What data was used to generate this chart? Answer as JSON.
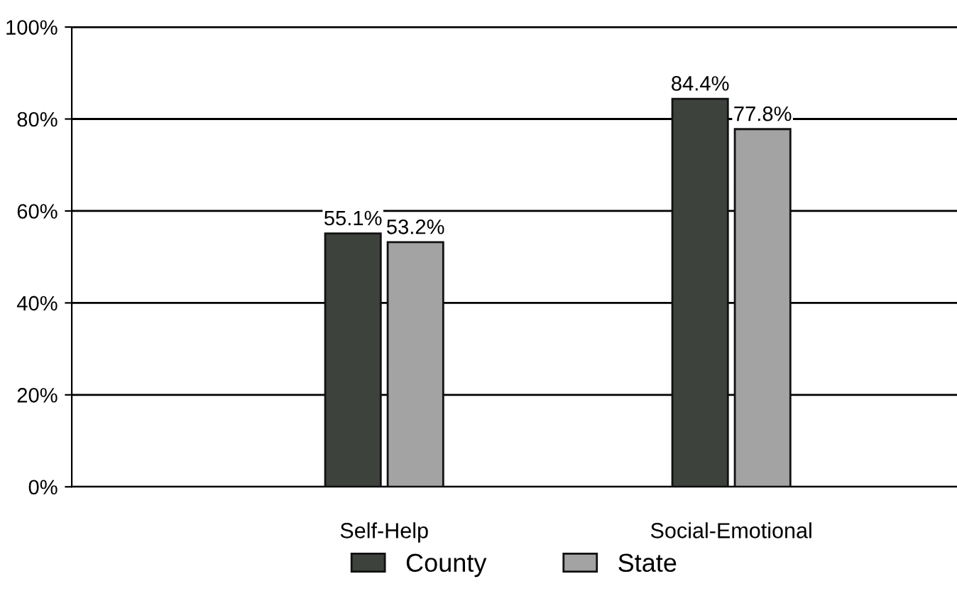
{
  "chart_data": {
    "type": "bar",
    "categories": [
      "Self-Help",
      "Social-Emotional"
    ],
    "series": [
      {
        "name": "County",
        "color": "#3d423d",
        "values": [
          55.1,
          84.4
        ],
        "value_labels": [
          "55.1%",
          "84.4%"
        ]
      },
      {
        "name": "State",
        "color": "#a3a3a3",
        "values": [
          53.2,
          77.8
        ],
        "value_labels": [
          "53.2%",
          "77.8%"
        ]
      }
    ],
    "ylim": [
      0,
      100
    ],
    "yticks": [
      {
        "value": 0,
        "label": "0%"
      },
      {
        "value": 20,
        "label": "20%"
      },
      {
        "value": 40,
        "label": "40%"
      },
      {
        "value": 60,
        "label": "60%"
      },
      {
        "value": 80,
        "label": "80%"
      },
      {
        "value": 100,
        "label": "100%"
      }
    ],
    "grid": "y",
    "legend": "bottom"
  }
}
